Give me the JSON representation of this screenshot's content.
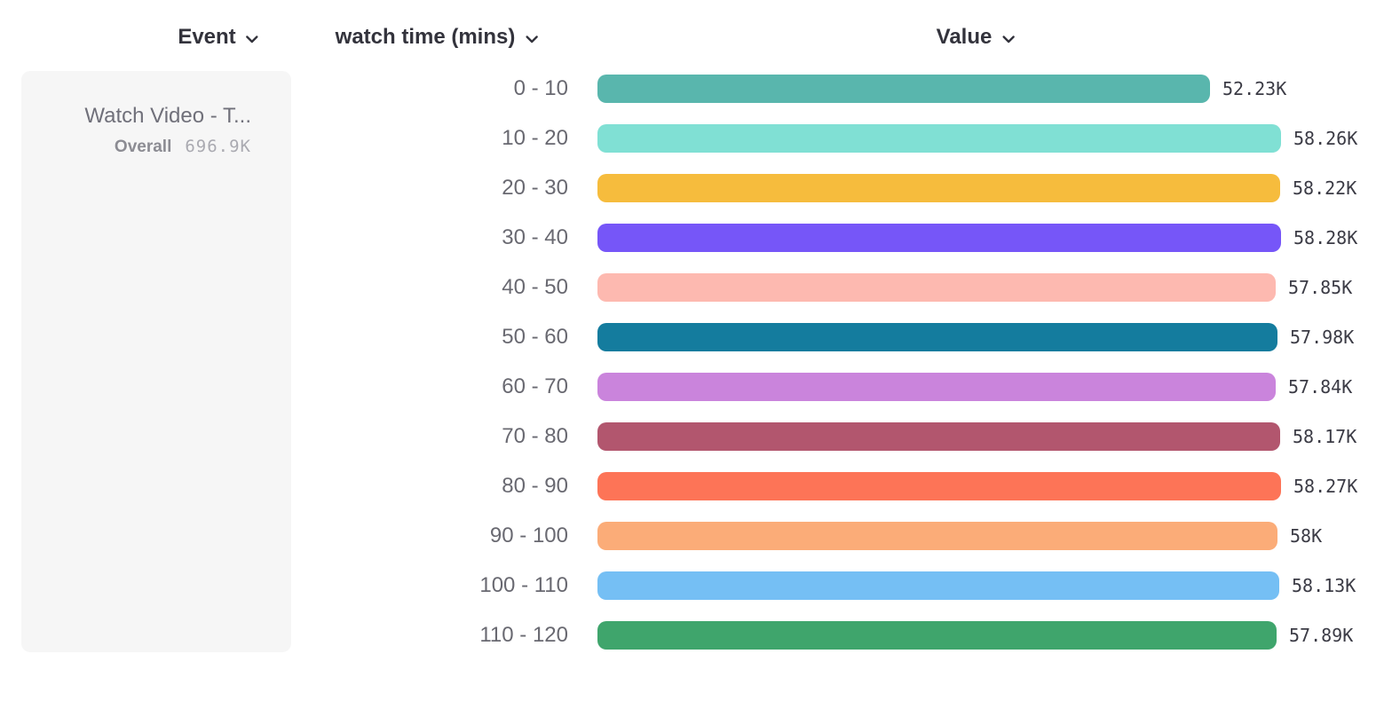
{
  "header": {
    "columns": [
      {
        "id": "event",
        "label": "Event"
      },
      {
        "id": "bucket",
        "label": "watch time (mins)"
      },
      {
        "id": "value",
        "label": "Value"
      }
    ]
  },
  "event_card": {
    "name": "Watch Video - T...",
    "overall_label": "Overall",
    "overall_value": "696.9K"
  },
  "chart_data": {
    "type": "bar",
    "orientation": "horizontal",
    "title": "",
    "xlabel": "Value",
    "ylabel": "watch time (mins)",
    "xlim": [
      0,
      58280
    ],
    "grid": false,
    "legend": false,
    "categories": [
      "0 - 10",
      "10 - 20",
      "20 - 30",
      "30 - 40",
      "40 - 50",
      "50 - 60",
      "60 - 70",
      "70 - 80",
      "80 - 90",
      "90 - 100",
      "100 - 110",
      "110 - 120"
    ],
    "values": [
      52230,
      58260,
      58220,
      58280,
      57850,
      57980,
      57840,
      58170,
      58270,
      58000,
      58130,
      57890
    ],
    "value_labels": [
      "52.23K",
      "58.26K",
      "58.22K",
      "58.28K",
      "57.85K",
      "57.98K",
      "57.84K",
      "58.17K",
      "58.27K",
      "58K",
      "58.13K",
      "57.89K"
    ],
    "bar_colors": [
      "#59b6ad",
      "#80e0d4",
      "#f6bc3d",
      "#7656f8",
      "#fdb9b0",
      "#147c9e",
      "#ca84dc",
      "#b2566e",
      "#fd7457",
      "#fbac78",
      "#75bff4",
      "#3fa56c"
    ],
    "colors_meta": {
      "header_text": "#33333c",
      "category_text": "#696971",
      "value_text": "#3b3b45",
      "card_background": "#f6f6f6"
    }
  }
}
